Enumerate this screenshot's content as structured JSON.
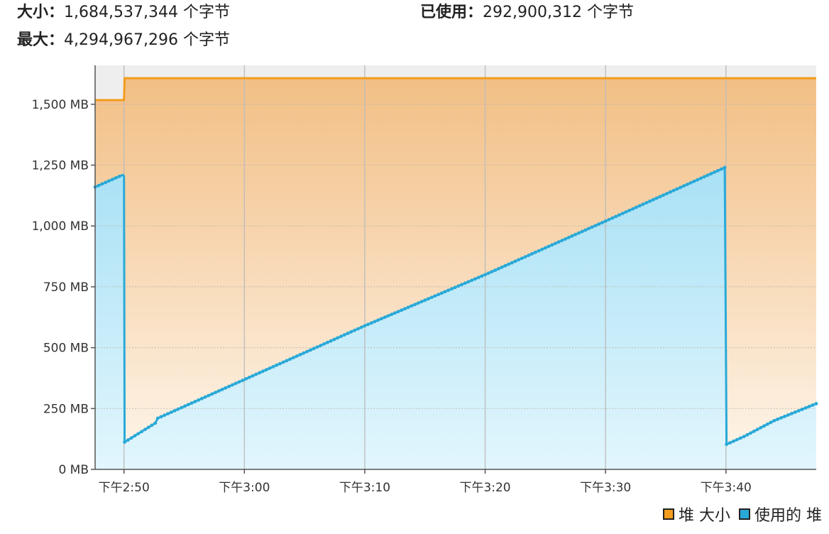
{
  "stats": {
    "size_label": "大小",
    "size_value": "1,684,537,344 个字节",
    "max_label": "最大",
    "max_value": "4,294,967,296 个字节",
    "used_label": "已使用",
    "used_value": "292,900,312 个字节",
    "separator": "："
  },
  "colors": {
    "heap_size": "#f39c1e",
    "used_heap": "#29a9d8"
  },
  "chart_data": {
    "type": "area",
    "x_unit": "minute",
    "x_ticks": [
      "下午2:50",
      "下午3:00",
      "下午3:10",
      "下午3:20",
      "下午3:30",
      "下午3:40"
    ],
    "x_tick_minutes": [
      170,
      180,
      190,
      200,
      210,
      220
    ],
    "xlim": [
      167.6,
      227.5
    ],
    "y_ticks": [
      "0 MB",
      "250 MB",
      "500 MB",
      "750 MB",
      "1,000 MB",
      "1,250 MB",
      "1,500 MB"
    ],
    "y_tick_values": [
      0,
      250,
      500,
      750,
      1000,
      1250,
      1500
    ],
    "ylim": [
      0,
      1660
    ],
    "grid": true,
    "legend_position": "bottom-right",
    "series": [
      {
        "name": "堆 大小",
        "points": [
          [
            167.6,
            1517
          ],
          [
            170.0,
            1517
          ],
          [
            170.05,
            1607
          ],
          [
            227.5,
            1607
          ]
        ]
      },
      {
        "name": "使用的 堆",
        "points": [
          [
            167.6,
            1160
          ],
          [
            169.9,
            1210
          ],
          [
            170.0,
            1205
          ],
          [
            170.05,
            112
          ],
          [
            172.6,
            190
          ],
          [
            172.8,
            210
          ],
          [
            190.0,
            590
          ],
          [
            200.0,
            800
          ],
          [
            210.0,
            1020
          ],
          [
            219.9,
            1240
          ],
          [
            220.05,
            103
          ],
          [
            221.5,
            135
          ],
          [
            224.0,
            200
          ],
          [
            227.5,
            270
          ]
        ],
        "markers": true
      }
    ]
  },
  "legend": {
    "heap_size_label": "堆 大小",
    "used_heap_label": "使用的 堆"
  }
}
